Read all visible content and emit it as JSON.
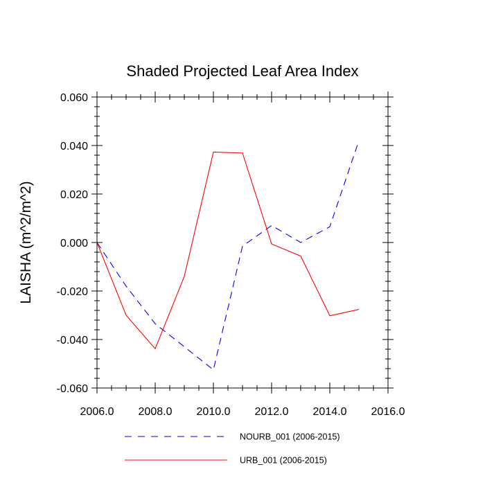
{
  "chart_data": {
    "type": "line",
    "title": "Shaded Projected Leaf Area Index",
    "xlabel": "",
    "ylabel": "LAISHA  (m^2/m^2)",
    "xlim": [
      2006.0,
      2016.0
    ],
    "ylim": [
      -0.06,
      0.06
    ],
    "xticks": [
      2006.0,
      2008.0,
      2010.0,
      2012.0,
      2014.0,
      2016.0
    ],
    "xtick_labels": [
      "2006.0",
      "2008.0",
      "2010.0",
      "2012.0",
      "2014.0",
      "2016.0"
    ],
    "yticks": [
      -0.06,
      -0.04,
      -0.02,
      0.0,
      0.02,
      0.04,
      0.06
    ],
    "ytick_labels": [
      "-0.060",
      "-0.040",
      "-0.020",
      "0.000",
      "0.020",
      "0.040",
      "0.060"
    ],
    "x": [
      2006,
      2007,
      2008,
      2009,
      2010,
      2011,
      2012,
      2013,
      2014,
      2015
    ],
    "series": [
      {
        "name": "NOURB_001 (2006-2015)",
        "color": "#0000ff",
        "style": "dashed",
        "values": [
          0.0,
          -0.018,
          -0.0335,
          -0.043,
          -0.0525,
          -0.0015,
          0.007,
          0.0,
          0.0065,
          0.042
        ]
      },
      {
        "name": "URB_001 (2006-2015)",
        "color": "#ff0000",
        "style": "solid",
        "values": [
          0.0,
          -0.03,
          -0.0438,
          -0.014,
          0.0373,
          0.0369,
          -0.0006,
          -0.0056,
          -0.0302,
          -0.0276
        ]
      }
    ],
    "legend_position": "bottom"
  }
}
